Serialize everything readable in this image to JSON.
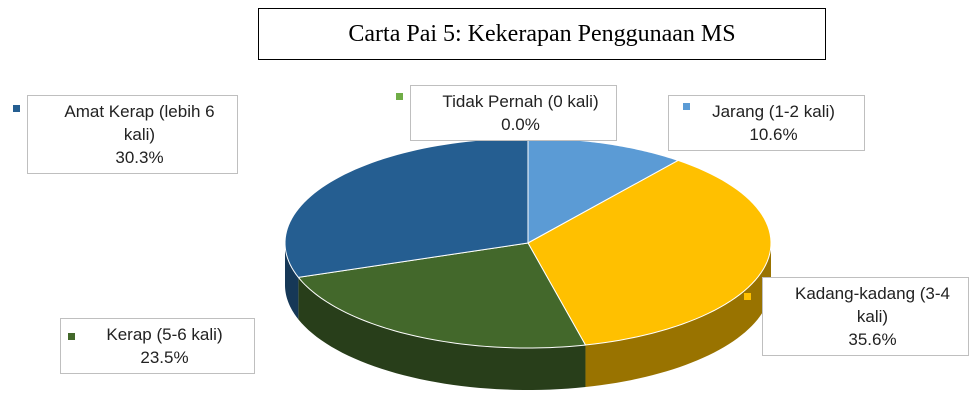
{
  "chart_data": {
    "type": "pie",
    "title": "Carta Pai 5: Kekerapan Penggunaan MS",
    "categories": [
      "Tidak Pernah (0 kali)",
      "Jarang (1-2 kali)",
      "Kadang-kadang (3-4 kali)",
      "Kerap (5-6 kali)",
      "Amat Kerap (lebih 6 kali)"
    ],
    "values": [
      0.0,
      10.6,
      35.6,
      23.5,
      30.3
    ],
    "value_labels": [
      "0.0%",
      "10.6%",
      "35.6%",
      "23.5%",
      "30.3%"
    ],
    "colors": [
      "#70ad47",
      "#5b9bd5",
      "#ffc000",
      "#43682b",
      "#255e91"
    ],
    "three_d": true
  }
}
